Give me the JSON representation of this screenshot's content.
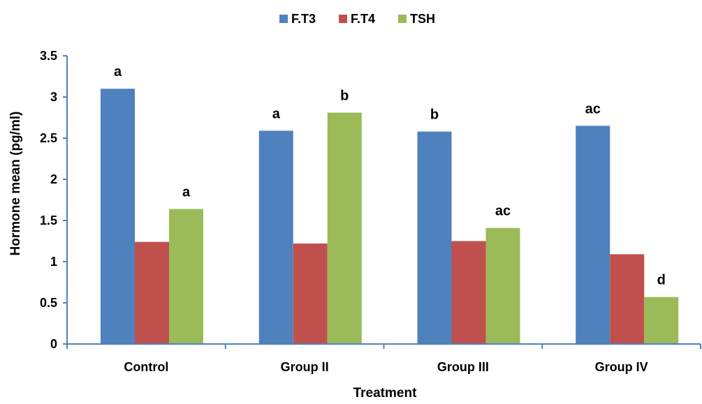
{
  "chart_data": {
    "type": "bar",
    "categories": [
      "Control",
      "Group II",
      "Group III",
      "Group IV"
    ],
    "series": [
      {
        "name": "F.T3",
        "color": "#4f81bd",
        "values": [
          3.1,
          2.59,
          2.58,
          2.65
        ],
        "labels": [
          "a",
          "a",
          "b",
          "ac"
        ]
      },
      {
        "name": "F.T4",
        "color": "#c0504d",
        "values": [
          1.24,
          1.22,
          1.25,
          1.09
        ],
        "labels": [
          "",
          "",
          "",
          ""
        ]
      },
      {
        "name": "TSH",
        "color": "#9bbb59",
        "values": [
          1.64,
          2.81,
          1.41,
          0.57
        ],
        "labels": [
          "a",
          "b",
          "ac",
          "d"
        ]
      }
    ],
    "xlabel": "Treatment",
    "ylabel": "Hormone mean (pg/ml)",
    "ylim": [
      0,
      3.5
    ],
    "yticks": [
      "0",
      "0.5",
      "1",
      "1.5",
      "2",
      "2.5",
      "3",
      "3.5"
    ],
    "grid": false,
    "legend_position": "top-center",
    "axis_color": "#4f81bd"
  }
}
